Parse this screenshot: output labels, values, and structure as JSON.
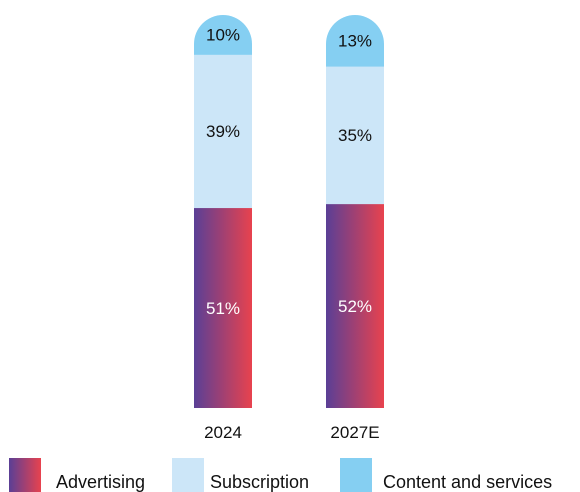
{
  "colors": {
    "advertising_start": "#5a3f96",
    "advertising_end": "#e8424e",
    "subscription": "#cce6f8",
    "content": "#85cff2",
    "text_dark": "#111111",
    "text_light": "#ffffff"
  },
  "chart_data": {
    "type": "bar",
    "stacked": true,
    "unit": "%",
    "categories": [
      "2024",
      "2027E"
    ],
    "series": [
      {
        "name": "Advertising",
        "values": [
          51,
          52
        ],
        "labels": [
          "51%",
          "52%"
        ],
        "color": "gradient purple-red"
      },
      {
        "name": "Subscription",
        "values": [
          39,
          35
        ],
        "labels": [
          "39%",
          "35%"
        ],
        "color": "#cce6f8"
      },
      {
        "name": "Content and services",
        "values": [
          10,
          13
        ],
        "labels": [
          "10%",
          "13%"
        ],
        "color": "#85cff2"
      }
    ],
    "ylim": [
      0,
      100
    ],
    "grid": false,
    "legend_position": "bottom"
  },
  "legend": {
    "items": [
      "Advertising",
      "Subscription",
      "Content and services"
    ]
  }
}
